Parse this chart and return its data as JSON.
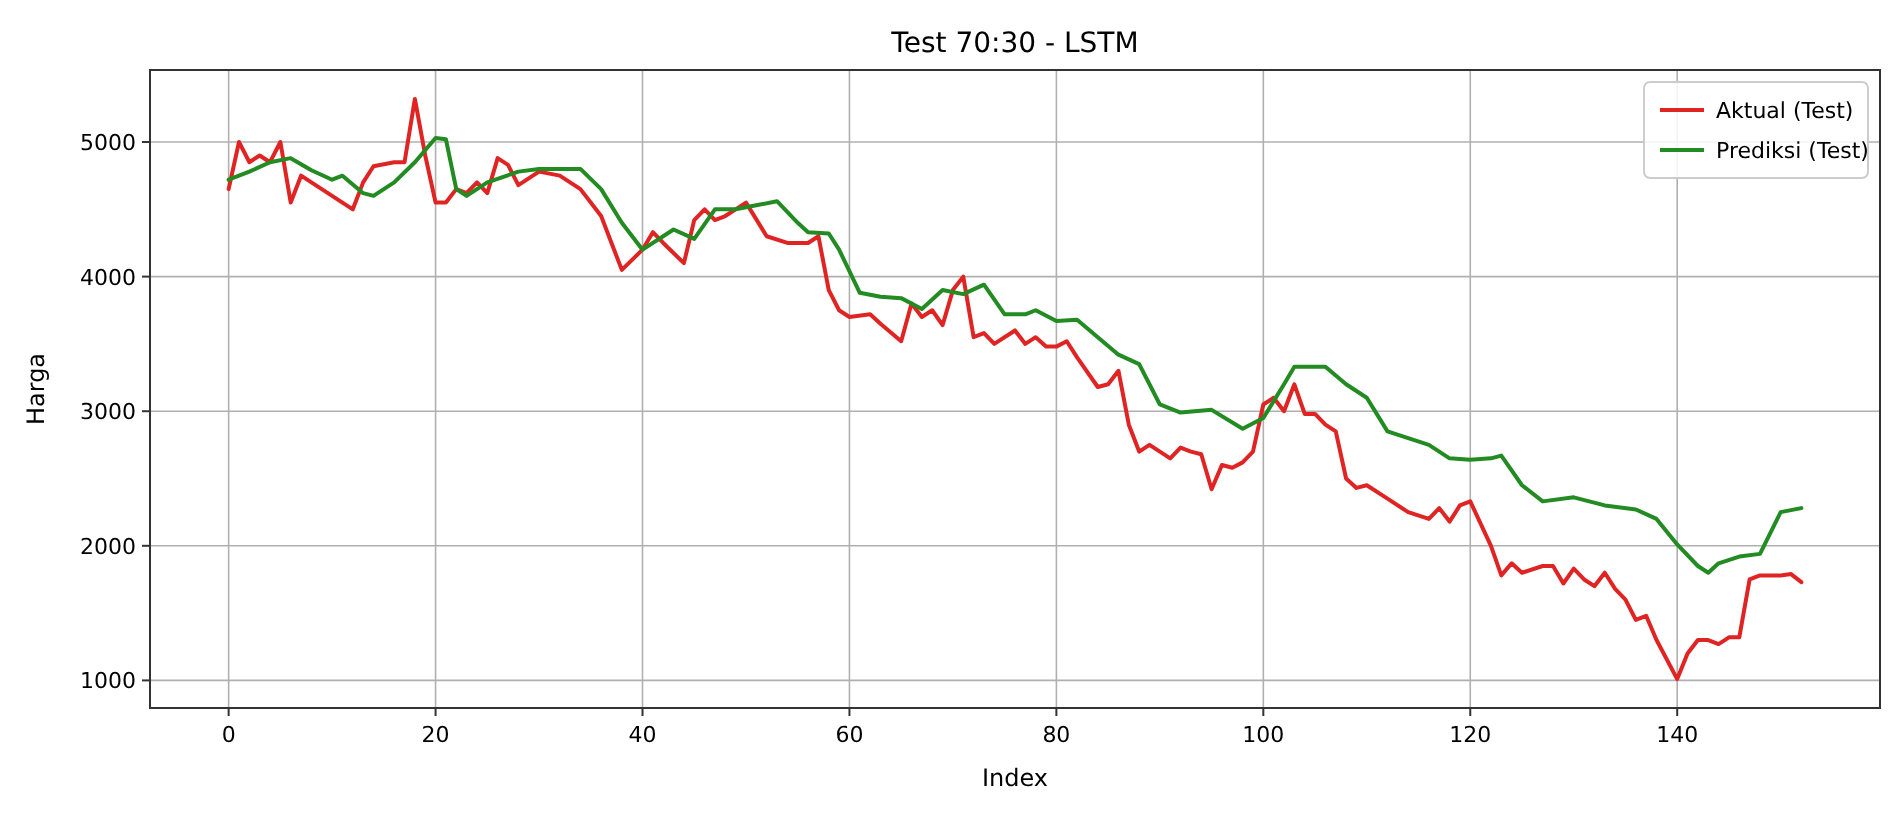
{
  "chart_data": {
    "type": "line",
    "title": "Test 70:30 - LSTM",
    "xlabel": "Index",
    "ylabel": "Harga",
    "xlim": [
      -7.6,
      159.6
    ],
    "xticks": [
      0,
      20,
      40,
      60,
      80,
      100,
      120,
      140
    ],
    "ylim": [
      795,
      5535
    ],
    "yticks": [
      1000,
      2000,
      3000,
      4000,
      5000
    ],
    "grid": true,
    "legend": "top right",
    "line_style": "solid",
    "series": [
      {
        "name": "Aktual (Test)",
        "color": "#e02424",
        "x": [
          0,
          1,
          2,
          3,
          4,
          5,
          6,
          7,
          8,
          10,
          12,
          13,
          14,
          16,
          17,
          18,
          19,
          20,
          21,
          22,
          23,
          24,
          25,
          26,
          27,
          28,
          30,
          32,
          34,
          36,
          38,
          40,
          41,
          42,
          44,
          45,
          46,
          47,
          48,
          49,
          50,
          52,
          54,
          56,
          57,
          58,
          59,
          60,
          62,
          63,
          65,
          66,
          67,
          68,
          69,
          70,
          71,
          72,
          73,
          74,
          76,
          77,
          78,
          79,
          80,
          81,
          82,
          84,
          85,
          86,
          87,
          88,
          89,
          91,
          92,
          93,
          94,
          95,
          96,
          97,
          98,
          99,
          100,
          101,
          102,
          103,
          104,
          105,
          106,
          107,
          108,
          109,
          110,
          112,
          114,
          116,
          117,
          118,
          119,
          120,
          122,
          123,
          124,
          125,
          127,
          128,
          129,
          130,
          131,
          132,
          133,
          134,
          135,
          136,
          137,
          138,
          140,
          141,
          142,
          143,
          144,
          145,
          146,
          147,
          148,
          150,
          151,
          152
        ],
        "values": [
          4650,
          5000,
          4850,
          4900,
          4850,
          5000,
          4550,
          4750,
          4700,
          4600,
          4500,
          4700,
          4820,
          4850,
          4850,
          5320,
          4900,
          4550,
          4550,
          4650,
          4620,
          4700,
          4620,
          4880,
          4830,
          4680,
          4780,
          4750,
          4650,
          4450,
          4050,
          4200,
          4330,
          4250,
          4100,
          4420,
          4500,
          4420,
          4450,
          4500,
          4550,
          4300,
          4250,
          4250,
          4300,
          3900,
          3750,
          3700,
          3720,
          3650,
          3520,
          3800,
          3700,
          3750,
          3640,
          3900,
          4000,
          3550,
          3580,
          3500,
          3600,
          3500,
          3550,
          3480,
          3480,
          3520,
          3400,
          3180,
          3200,
          3300,
          2900,
          2700,
          2750,
          2650,
          2730,
          2700,
          2680,
          2420,
          2600,
          2580,
          2620,
          2700,
          3050,
          3100,
          3000,
          3200,
          2980,
          2980,
          2900,
          2850,
          2500,
          2430,
          2450,
          2350,
          2250,
          2200,
          2280,
          2180,
          2300,
          2330,
          2000,
          1780,
          1870,
          1800,
          1850,
          1850,
          1720,
          1830,
          1750,
          1700,
          1800,
          1680,
          1600,
          1450,
          1480,
          1300,
          1010,
          1200,
          1300,
          1300,
          1270,
          1320,
          1320,
          1750,
          1780,
          1780,
          1790,
          1730
        ]
      },
      {
        "name": "Prediksi (Test)",
        "color": "#228b22",
        "x": [
          0,
          2,
          4,
          6,
          8,
          10,
          11,
          13,
          14,
          16,
          18,
          20,
          21,
          22,
          23,
          25,
          28,
          30,
          32,
          34,
          36,
          38,
          40,
          42,
          43,
          45,
          47,
          49,
          51,
          53,
          55,
          56,
          58,
          59,
          61,
          63,
          65,
          67,
          69,
          71,
          73,
          75,
          77,
          78,
          80,
          82,
          84,
          86,
          88,
          90,
          92,
          95,
          98,
          100,
          102,
          103,
          106,
          108,
          110,
          112,
          114,
          116,
          118,
          120,
          122,
          123,
          125,
          127,
          130,
          133,
          136,
          138,
          140,
          142,
          143,
          144,
          146,
          148,
          150,
          152
        ],
        "values": [
          4720,
          4780,
          4850,
          4880,
          4790,
          4720,
          4750,
          4620,
          4600,
          4700,
          4850,
          5030,
          5020,
          4650,
          4600,
          4700,
          4780,
          4800,
          4800,
          4800,
          4650,
          4400,
          4200,
          4300,
          4350,
          4280,
          4500,
          4500,
          4530,
          4560,
          4400,
          4330,
          4320,
          4200,
          3880,
          3850,
          3840,
          3760,
          3900,
          3870,
          3940,
          3720,
          3720,
          3750,
          3670,
          3680,
          3550,
          3420,
          3350,
          3050,
          2990,
          3010,
          2870,
          2950,
          3200,
          3330,
          3330,
          3200,
          3100,
          2850,
          2800,
          2750,
          2650,
          2640,
          2650,
          2670,
          2450,
          2330,
          2360,
          2300,
          2270,
          2200,
          2010,
          1850,
          1800,
          1870,
          1920,
          1940,
          2250,
          2280
        ]
      }
    ]
  }
}
